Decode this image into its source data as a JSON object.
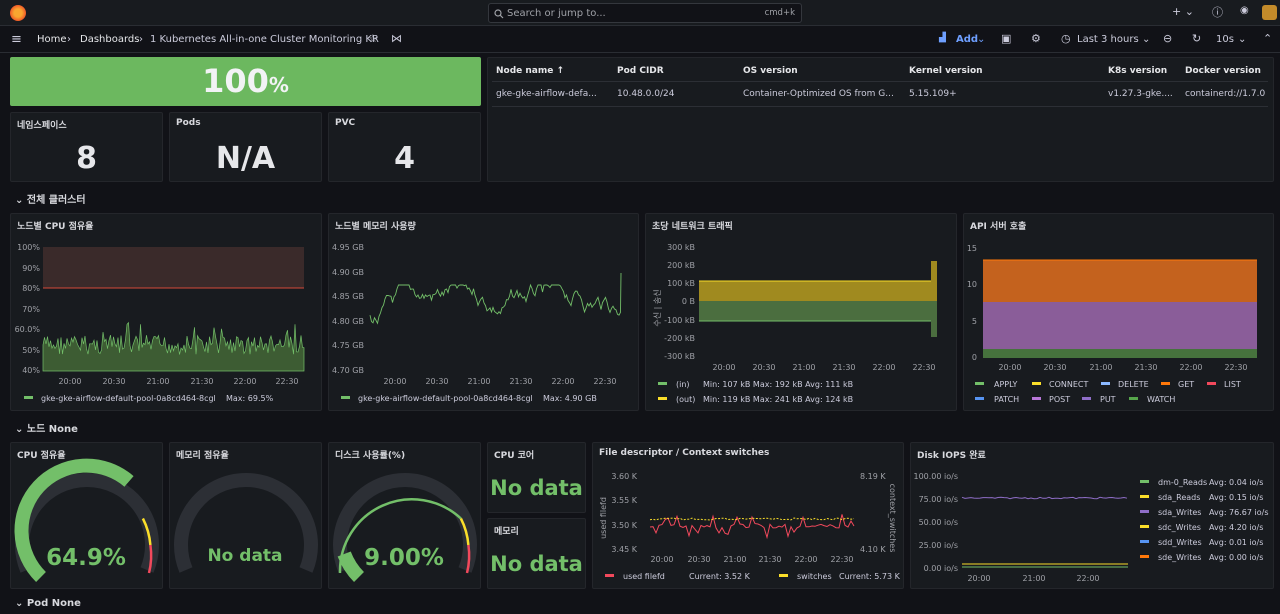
{
  "search": {
    "placeholder": "Search or jump to...",
    "shortcut": "cmd+k"
  },
  "breadcrumb": {
    "home": "Home",
    "dashboards": "Dashboards",
    "current": "1 Kubernetes All-in-one Cluster Monitoring KR"
  },
  "toolbar": {
    "add": "Add",
    "time_range": "Last 3 hours",
    "refresh": "10s"
  },
  "top_stat": {
    "value": "100",
    "unit": "%"
  },
  "stats": [
    {
      "title": "네임스페이스",
      "value": "8"
    },
    {
      "title": "Pods",
      "value": "N/A"
    },
    {
      "title": "PVC",
      "value": "4"
    }
  ],
  "node_table": {
    "headers": [
      "Node name ↑",
      "Pod CIDR",
      "OS version",
      "Kernel version",
      "K8s version",
      "Docker version"
    ],
    "row": [
      "gke-gke-airflow-defa...",
      "10.48.0.0/24",
      "Container-Optimized OS from G...",
      "5.15.109+",
      "v1.27.3-gke....",
      "containerd://1.7.0"
    ]
  },
  "sections": {
    "cluster": "전체 클러스터",
    "node": "노드 None",
    "pod": "Pod None"
  },
  "colors": {
    "green": "#73bf69",
    "yellow": "#fade2a",
    "red": "#f2495c",
    "orange": "#ff780a",
    "purple": "#b877d9",
    "blue": "#5794f2",
    "bg": "#181b1f"
  },
  "cpu_panel": {
    "title": "노드별 CPU 점유율",
    "y_ticks": [
      "100%",
      "90%",
      "80%",
      "70%",
      "60.0%",
      "50%",
      "40%"
    ],
    "x_ticks": [
      "20:00",
      "20:30",
      "21:00",
      "21:30",
      "22:00",
      "22:30"
    ],
    "legend": "gke-gke-airflow-default-pool-0a8cd464-8cgl",
    "legend_stat": "Max: 69.5%"
  },
  "mem_panel": {
    "title": "노드별 메모리 사용량",
    "y_ticks": [
      "4.95 GB",
      "4.90 GB",
      "4.85 GB",
      "4.80 GB",
      "4.75 GB",
      "4.70 GB"
    ],
    "x_ticks": [
      "20:00",
      "20:30",
      "21:00",
      "21:30",
      "22:00",
      "22:30"
    ],
    "legend": "gke-gke-airflow-default-pool-0a8cd464-8cgl",
    "legend_stat": "Max: 4.90 GB"
  },
  "net_panel": {
    "title": "초당 네트워크 트래픽",
    "y_axis_label": "수신 | 송신",
    "y_ticks": [
      "300 kB",
      "200 kB",
      "100 kB",
      "0 B",
      "-100 kB",
      "-200 kB",
      "-300 kB"
    ],
    "x_ticks": [
      "20:00",
      "20:30",
      "21:00",
      "21:30",
      "22:00",
      "22:30"
    ],
    "legend": [
      {
        "name": "(in)",
        "stats": "Min: 107 kB  Max: 192 kB  Avg: 111 kB"
      },
      {
        "name": "(out)",
        "stats": "Min: 119 kB  Max: 241 kB  Avg: 124 kB"
      }
    ]
  },
  "api_panel": {
    "title": "API 서버 호출",
    "y_ticks": [
      "15",
      "10",
      "5",
      "0"
    ],
    "x_ticks": [
      "20:00",
      "20:30",
      "21:00",
      "21:30",
      "22:00",
      "22:30"
    ],
    "legend_row1": [
      "APPLY",
      "CONNECT",
      "DELETE",
      "GET",
      "LIST"
    ],
    "legend_row2": [
      "PATCH",
      "POST",
      "PUT",
      "WATCH"
    ]
  },
  "gauges": [
    {
      "title": "CPU 점유율",
      "value": "64.9%",
      "fraction": 0.649
    },
    {
      "title": "메모리 점유율",
      "value": "No data",
      "fraction": 0
    },
    {
      "title": "디스크 사용률(%)",
      "value": "9.00%",
      "fraction": 0.09
    }
  ],
  "cpu_core": {
    "title": "CPU 코어",
    "value": "No data"
  },
  "memory": {
    "title": "메모리",
    "value": "No data"
  },
  "fd_panel": {
    "title": "File descriptor / Context switches",
    "y_left_label": "used filefd",
    "y_right_label": "context_switches",
    "y_left_ticks": [
      "3.60 K",
      "3.55 K",
      "3.50 K",
      "3.45 K"
    ],
    "y_right_ticks": [
      "8.19 K",
      "4.10 K"
    ],
    "x_ticks": [
      "20:00",
      "20:30",
      "21:00",
      "21:30",
      "22:00",
      "22:30"
    ],
    "legend": [
      {
        "name": "used filefd",
        "stats": "Current: 3.52 K"
      },
      {
        "name": "switches",
        "stats": "Current: 5.73 K"
      }
    ]
  },
  "disk_panel": {
    "title": "Disk IOPS 완료",
    "y_ticks": [
      "100.00 io/s",
      "75.00 io/s",
      "50.00 io/s",
      "25.00 io/s",
      "0.00 io/s"
    ],
    "x_ticks": [
      "20:00",
      "21:00",
      "22:00"
    ],
    "legend": [
      {
        "name": "dm-0_Reads",
        "stats": "Avg: 0.04 io/s"
      },
      {
        "name": "sda_Reads",
        "stats": "Avg: 0.15 io/s"
      },
      {
        "name": "sda_Writes",
        "stats": "Avg: 76.67 io/s"
      },
      {
        "name": "sdc_Writes",
        "stats": "Avg: 4.20 io/s"
      },
      {
        "name": "sdd_Writes",
        "stats": "Avg: 0.01 io/s"
      },
      {
        "name": "sde_Writes",
        "stats": "Avg: 0.00 io/s"
      }
    ]
  }
}
